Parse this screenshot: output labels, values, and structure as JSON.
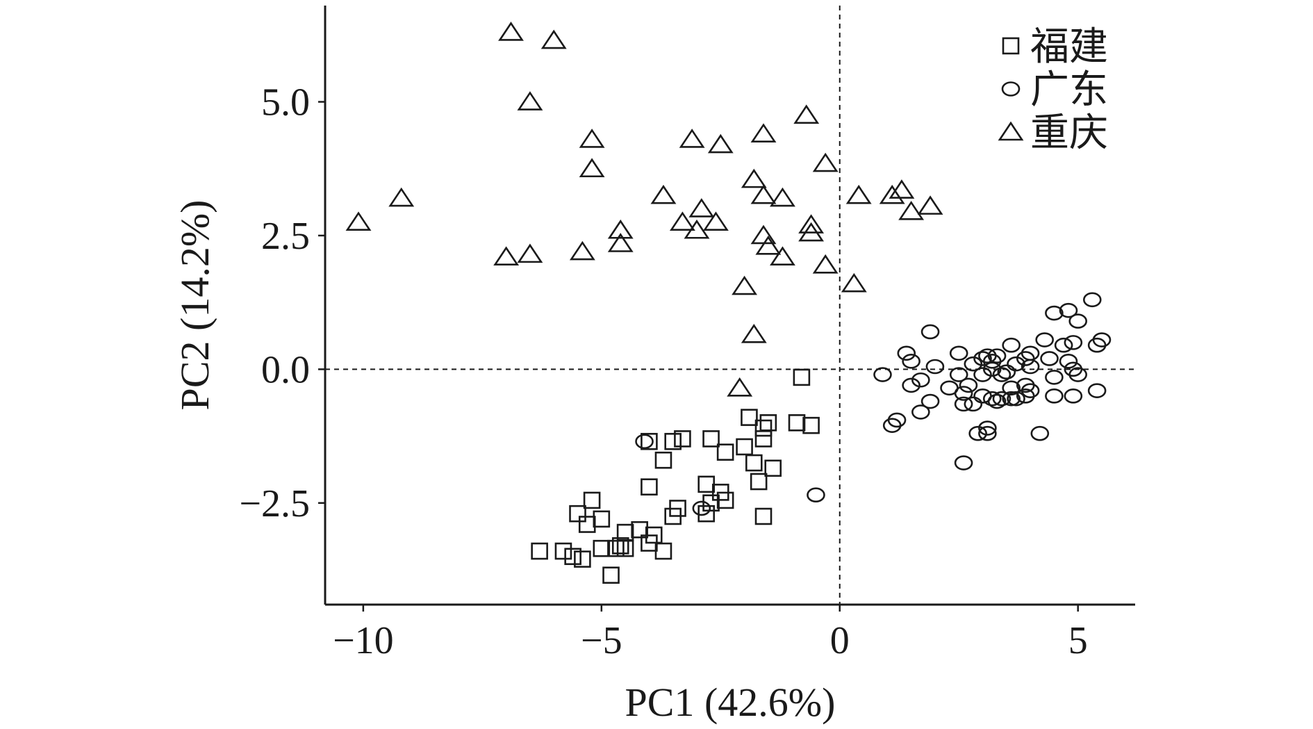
{
  "chart_data": {
    "type": "scatter",
    "xlabel": "PC1 (42.6%)",
    "ylabel": "PC2 (14.2%)",
    "xlim": [
      -10.8,
      6.2
    ],
    "ylim": [
      -4.4,
      6.8
    ],
    "xticks": [
      -10,
      -5,
      0,
      5
    ],
    "xtick_labels": [
      "−10",
      "−5",
      "0",
      "5"
    ],
    "yticks": [
      -2.5,
      0.0,
      2.5,
      5.0
    ],
    "ytick_labels": [
      "−2.5",
      "0.0",
      "2.5",
      "5.0"
    ],
    "reference_lines": {
      "x": 0,
      "y": 0,
      "style": "dashed"
    },
    "legend_position": "top-right",
    "series": [
      {
        "name": "福建",
        "marker": "square",
        "points": [
          [
            -0.8,
            -0.15
          ],
          [
            -0.9,
            -1.0
          ],
          [
            -0.6,
            -1.05
          ],
          [
            -1.9,
            -0.9
          ],
          [
            -1.5,
            -1.0
          ],
          [
            -1.6,
            -1.1
          ],
          [
            -1.6,
            -1.3
          ],
          [
            -4.0,
            -1.35
          ],
          [
            -3.3,
            -1.3
          ],
          [
            -3.5,
            -1.35
          ],
          [
            -2.7,
            -1.3
          ],
          [
            -2.0,
            -1.45
          ],
          [
            -2.4,
            -1.55
          ],
          [
            -1.8,
            -1.75
          ],
          [
            -1.4,
            -1.85
          ],
          [
            -3.7,
            -1.7
          ],
          [
            -1.7,
            -2.1
          ],
          [
            -2.8,
            -2.15
          ],
          [
            -4.0,
            -2.2
          ],
          [
            -2.5,
            -2.3
          ],
          [
            -2.4,
            -2.45
          ],
          [
            -2.7,
            -2.5
          ],
          [
            -5.2,
            -2.45
          ],
          [
            -3.4,
            -2.6
          ],
          [
            -2.8,
            -2.7
          ],
          [
            -3.5,
            -2.75
          ],
          [
            -5.5,
            -2.7
          ],
          [
            -5.0,
            -2.8
          ],
          [
            -5.3,
            -2.9
          ],
          [
            -1.6,
            -2.75
          ],
          [
            -4.2,
            -3.0
          ],
          [
            -4.5,
            -3.05
          ],
          [
            -3.9,
            -3.1
          ],
          [
            -4.0,
            -3.25
          ],
          [
            -4.5,
            -3.35
          ],
          [
            -4.7,
            -3.35
          ],
          [
            -5.0,
            -3.35
          ],
          [
            -3.7,
            -3.4
          ],
          [
            -6.3,
            -3.4
          ],
          [
            -5.8,
            -3.4
          ],
          [
            -5.6,
            -3.5
          ],
          [
            -5.4,
            -3.55
          ],
          [
            -4.6,
            -3.3
          ],
          [
            -4.8,
            -3.85
          ]
        ]
      },
      {
        "name": "广东",
        "marker": "circle",
        "points": [
          [
            5.3,
            1.3
          ],
          [
            4.8,
            1.1
          ],
          [
            4.5,
            1.05
          ],
          [
            5.0,
            0.9
          ],
          [
            1.9,
            0.7
          ],
          [
            4.3,
            0.55
          ],
          [
            5.5,
            0.55
          ],
          [
            4.9,
            0.5
          ],
          [
            5.4,
            0.45
          ],
          [
            3.6,
            0.45
          ],
          [
            4.7,
            0.45
          ],
          [
            1.4,
            0.3
          ],
          [
            3.1,
            0.25
          ],
          [
            3.3,
            0.25
          ],
          [
            2.5,
            0.3
          ],
          [
            4.0,
            0.3
          ],
          [
            3.9,
            0.2
          ],
          [
            3.0,
            0.2
          ],
          [
            3.2,
            0.15
          ],
          [
            4.4,
            0.2
          ],
          [
            4.8,
            0.15
          ],
          [
            1.5,
            0.15
          ],
          [
            2.8,
            0.1
          ],
          [
            3.7,
            0.1
          ],
          [
            4.0,
            0.05
          ],
          [
            2.0,
            0.05
          ],
          [
            4.9,
            0.0
          ],
          [
            5.0,
            -0.1
          ],
          [
            3.2,
            0.0
          ],
          [
            3.5,
            -0.05
          ],
          [
            0.9,
            -0.1
          ],
          [
            2.5,
            -0.1
          ],
          [
            3.0,
            -0.1
          ],
          [
            3.4,
            -0.1
          ],
          [
            4.5,
            -0.15
          ],
          [
            1.7,
            -0.2
          ],
          [
            1.5,
            -0.3
          ],
          [
            2.7,
            -0.3
          ],
          [
            3.9,
            -0.3
          ],
          [
            3.6,
            -0.35
          ],
          [
            2.3,
            -0.35
          ],
          [
            5.4,
            -0.4
          ],
          [
            4.0,
            -0.4
          ],
          [
            2.6,
            -0.45
          ],
          [
            4.9,
            -0.5
          ],
          [
            3.0,
            -0.5
          ],
          [
            3.2,
            -0.55
          ],
          [
            3.4,
            -0.55
          ],
          [
            3.6,
            -0.55
          ],
          [
            4.5,
            -0.5
          ],
          [
            3.3,
            -0.6
          ],
          [
            2.6,
            -0.65
          ],
          [
            2.8,
            -0.65
          ],
          [
            3.7,
            -0.55
          ],
          [
            1.9,
            -0.6
          ],
          [
            3.9,
            -0.5
          ],
          [
            1.7,
            -0.8
          ],
          [
            1.2,
            -0.95
          ],
          [
            1.1,
            -1.05
          ],
          [
            3.1,
            -1.1
          ],
          [
            2.9,
            -1.2
          ],
          [
            3.1,
            -1.2
          ],
          [
            4.2,
            -1.2
          ],
          [
            2.6,
            -1.75
          ],
          [
            -4.1,
            -1.35
          ],
          [
            -2.9,
            -2.6
          ],
          [
            -0.5,
            -2.35
          ]
        ]
      },
      {
        "name": "重庆",
        "marker": "triangle",
        "points": [
          [
            -6.9,
            6.3
          ],
          [
            -6.0,
            6.15
          ],
          [
            -6.5,
            5.0
          ],
          [
            -0.7,
            4.75
          ],
          [
            -1.6,
            4.4
          ],
          [
            -5.2,
            4.3
          ],
          [
            -3.1,
            4.3
          ],
          [
            -2.5,
            4.2
          ],
          [
            -0.3,
            3.85
          ],
          [
            -5.2,
            3.75
          ],
          [
            -1.8,
            3.55
          ],
          [
            -1.6,
            3.25
          ],
          [
            -3.7,
            3.25
          ],
          [
            -1.2,
            3.2
          ],
          [
            -9.2,
            3.2
          ],
          [
            0.4,
            3.25
          ],
          [
            1.1,
            3.25
          ],
          [
            1.3,
            3.35
          ],
          [
            1.9,
            3.05
          ],
          [
            1.5,
            2.95
          ],
          [
            -2.9,
            3.0
          ],
          [
            -10.1,
            2.75
          ],
          [
            -3.3,
            2.75
          ],
          [
            -2.6,
            2.75
          ],
          [
            -0.6,
            2.7
          ],
          [
            -4.6,
            2.6
          ],
          [
            -3.0,
            2.6
          ],
          [
            -0.6,
            2.55
          ],
          [
            -1.6,
            2.5
          ],
          [
            -4.6,
            2.35
          ],
          [
            -1.5,
            2.3
          ],
          [
            -5.4,
            2.2
          ],
          [
            -6.5,
            2.15
          ],
          [
            -7.0,
            2.1
          ],
          [
            -1.2,
            2.1
          ],
          [
            -0.3,
            1.95
          ],
          [
            0.3,
            1.6
          ],
          [
            -2.0,
            1.55
          ],
          [
            -1.8,
            0.65
          ],
          [
            -2.1,
            -0.35
          ]
        ]
      }
    ]
  }
}
